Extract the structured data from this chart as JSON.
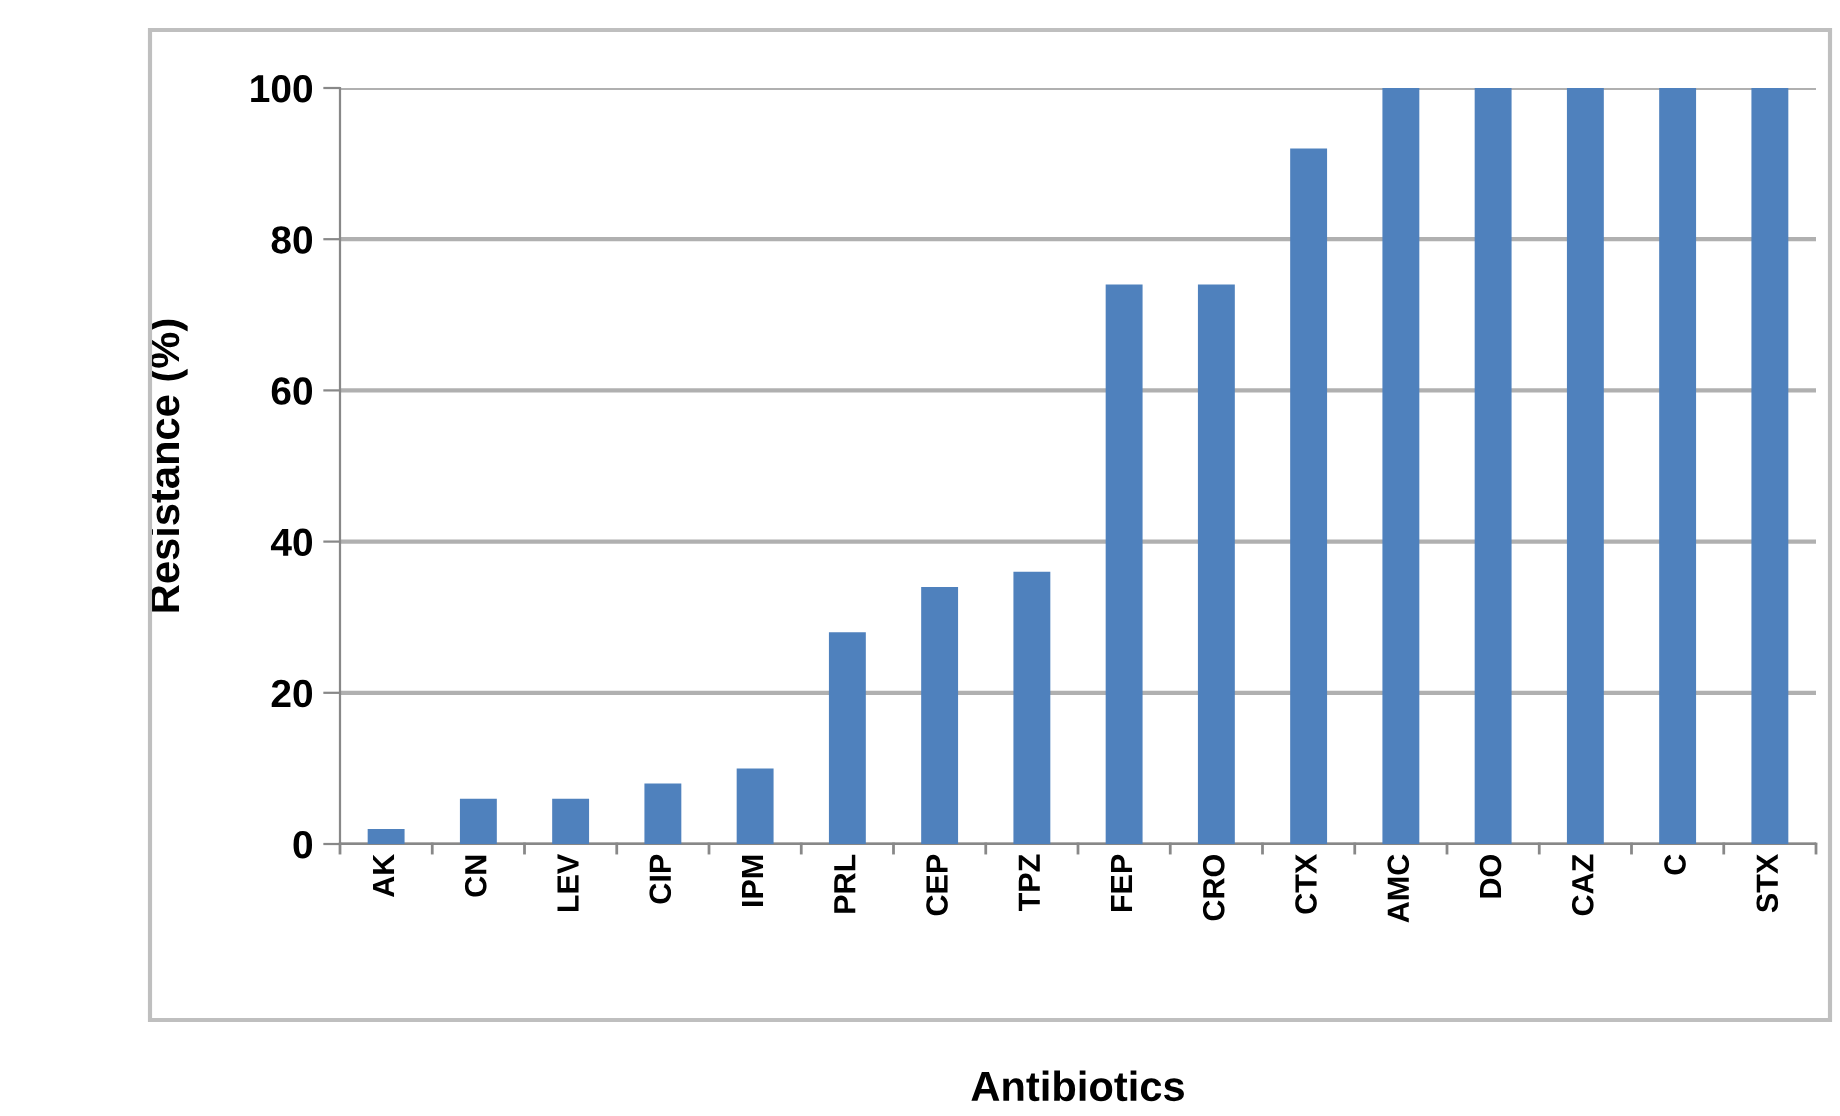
{
  "chart_data": {
    "type": "bar",
    "xlabel": "Antibiotics",
    "ylabel": "Resistance (%)",
    "categories": [
      "AK",
      "CN",
      "LEV",
      "CIP",
      "IPM",
      "PRL",
      "CEP",
      "TPZ",
      "FEP",
      "CRO",
      "CTX",
      "AMC",
      "DO",
      "CAZ",
      "C",
      "STX"
    ],
    "values": [
      2,
      6,
      6,
      8,
      10,
      28,
      34,
      36,
      74,
      74,
      92,
      100,
      100,
      100,
      100,
      100
    ],
    "color": "#4f81bd",
    "ylim": [
      0,
      100
    ],
    "yticks": [
      0,
      20,
      40,
      60,
      80,
      100
    ],
    "grid": "y"
  }
}
